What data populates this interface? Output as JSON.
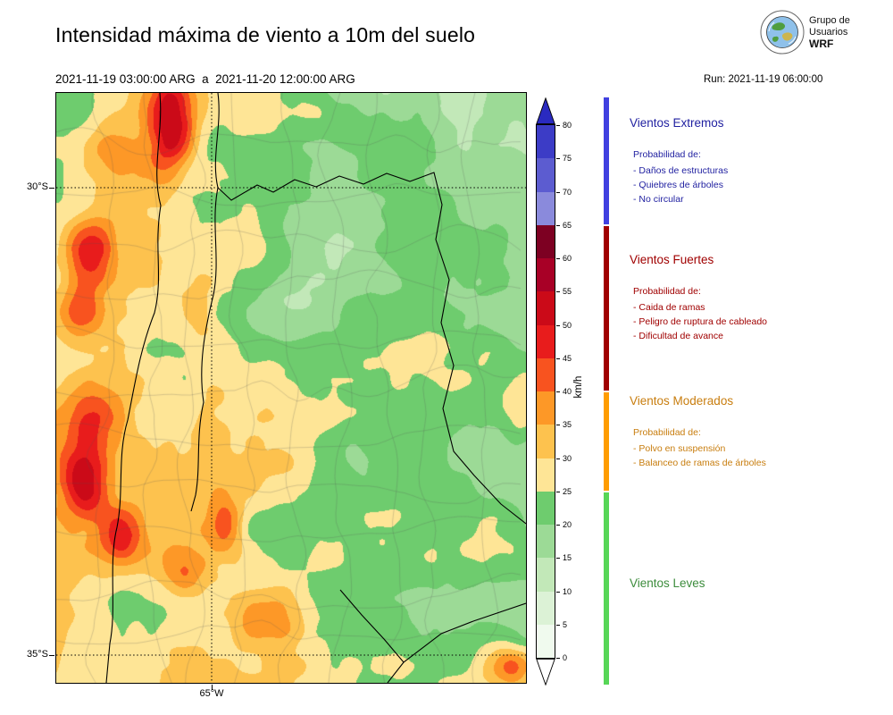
{
  "header": {
    "title": "Intensidad máxima de viento a 10m del suelo",
    "period": "2021-11-19 03:00:00 ARG  a  2021-11-20 12:00:00 ARG",
    "run": "Run: 2021-11-19 06:00:00",
    "logo": {
      "line1": "Grupo de",
      "line2": "Usuarios",
      "line3": "WRF"
    }
  },
  "axes": {
    "lat_ticks": [
      "30°S",
      "35°S"
    ],
    "lon_ticks": [
      "65°W"
    ]
  },
  "colorbar": {
    "unit": "km/h",
    "ticks": [
      "0",
      "5",
      "10",
      "15",
      "20",
      "25",
      "30",
      "35",
      "40",
      "45",
      "50",
      "55",
      "60",
      "65",
      "70",
      "75",
      "80"
    ],
    "colors": [
      "#f0faee",
      "#dcf2d6",
      "#c2e8b8",
      "#9cda96",
      "#6ecc6e",
      "#fee596",
      "#fdc24e",
      "#fd9827",
      "#f8531f",
      "#e81c1c",
      "#cb0a18",
      "#a80026",
      "#7d0022",
      "#8a8adc",
      "#5c5cd0",
      "#3c3cc6"
    ],
    "over_color": "#2a2ac0",
    "under_color": "#ffffff"
  },
  "legend": {
    "sections": [
      {
        "title": "Vientos Extremos",
        "subtitle": "Probabilidad de:",
        "items": [
          "- Daños de estructuras",
          "- Quiebres de árboles",
          "- No circular"
        ],
        "text_color": "#1f1fa0",
        "bar_color": "#4040e0",
        "range_kmh": "65-80+"
      },
      {
        "title": "Vientos Fuertes",
        "subtitle": "Probabilidad de:",
        "items": [
          "- Caida de ramas",
          "- Peligro de ruptura de cableado",
          "- Dificultad de avance"
        ],
        "text_color": "#a00000",
        "bar_color": "#a00000",
        "range_kmh": "40-65"
      },
      {
        "title": "Vientos Moderados",
        "subtitle": "Probabilidad de:",
        "items": [
          "- Polvo en suspensión",
          "- Balanceo de ramas de árboles"
        ],
        "text_color": "#c87d0e",
        "bar_color": "#ff9c00",
        "range_kmh": "25-40"
      },
      {
        "title": "Vientos Leves",
        "subtitle": "",
        "items": [],
        "text_color": "#3c8c3c",
        "bar_color": "#57d657",
        "range_kmh": "0-25"
      }
    ]
  },
  "chart_data": {
    "type": "heatmap",
    "title": "Intensidad máxima de viento a 10m del suelo",
    "units": "km/h",
    "levels": [
      0,
      5,
      10,
      15,
      20,
      25,
      30,
      35,
      40,
      45,
      50,
      55,
      60,
      65,
      70,
      75,
      80
    ],
    "categories": [
      {
        "label": "Vientos Leves",
        "range": "0-25 km/h"
      },
      {
        "label": "Vientos Moderados",
        "range": "25-40 km/h"
      },
      {
        "label": "Vientos Fuertes",
        "range": "40-65 km/h"
      },
      {
        "label": "Vientos Extremos",
        "range": "65-80+ km/h"
      }
    ],
    "map_extent": {
      "lat_labels": [
        "30°S",
        "35°S"
      ],
      "lon_labels": [
        "65°W"
      ]
    },
    "notes": "Filled-contour wind map: strongest winds (40-60 km/h, red) along western mountain band and central sierras; light winds (green, <25 km/h) over the northeast; moderate (yellow/orange 25-40 km/h) over center and south."
  }
}
